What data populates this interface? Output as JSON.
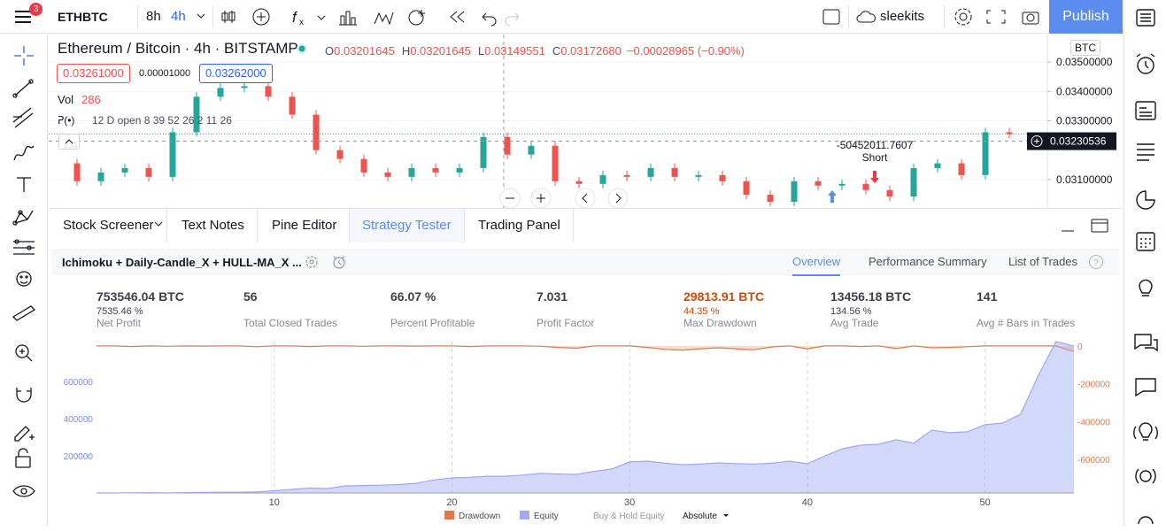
{
  "toolbar": {
    "notifications": "3",
    "symbol": "ETHBTC",
    "intervals": [
      "8h",
      "4h"
    ],
    "user": "sleekits",
    "publish": "Publish"
  },
  "chart_header": {
    "title": "Ethereum / Bitcoin · 4h · BITSTAMP",
    "ohlc": [
      {
        "key": "O",
        "value": "0.03201645"
      },
      {
        "key": "H",
        "value": "0.03201645"
      },
      {
        "key": "L",
        "value": "0.03149551"
      },
      {
        "key": "C",
        "value": "0.03172680"
      }
    ],
    "change": "−0.00028965 (−0.90%)",
    "sell": "0.03261000",
    "spread": "0.00001000",
    "buy": "0.03262000",
    "volume_label": "Vol",
    "volume": "286",
    "indicator": "12 D open 8 39 52 26 2 11 26",
    "currency": "BTC"
  },
  "price_chart": {
    "type": "candlestick",
    "close": [
      0.03155,
      0.03094,
      0.03124,
      0.03139,
      0.03109,
      0.03261,
      0.03382,
      0.03412,
      0.03418,
      0.03382,
      0.03321,
      0.032,
      0.0317,
      0.03124,
      0.03109,
      0.03139,
      0.03124,
      0.03139,
      0.03245,
      0.03185,
      0.03215,
      0.03094,
      0.03085,
      0.03115,
      0.03109,
      0.03139,
      0.03109,
      0.03115,
      0.03094,
      0.03048,
      0.03024,
      0.03094,
      0.03079,
      0.03085,
      0.03064,
      0.03042,
      0.03139,
      0.03155,
      0.03115,
      0.03261,
      0.03255
    ],
    "ylim": [
      0.03003,
      0.03594
    ],
    "yticks": [
      {
        "value": 0.035,
        "label": "0.03500000"
      },
      {
        "value": 0.034,
        "label": "0.03400000"
      },
      {
        "value": 0.033,
        "label": "0.03300000"
      },
      {
        "value": 0.031,
        "label": "0.03100000"
      }
    ],
    "last_price": {
      "value": 0.03230536,
      "label": "0.03230536"
    },
    "annotation": "-50452011.7607",
    "signal": "Short",
    "up_color": "#26a69a",
    "down_color": "#ef5350"
  },
  "tabs": [
    "Stock Screener",
    "Text Notes",
    "Pine Editor",
    "Strategy Tester",
    "Trading Panel"
  ],
  "strategy": {
    "name": "Ichimoku + Daily-Candle_X + HULL-MA_X ...",
    "views": [
      "Overview",
      "Performance Summary",
      "List of Trades"
    ],
    "stats": [
      {
        "value": "753546.04 BTC",
        "sub": "7535.46 %",
        "label": "Net Profit"
      },
      {
        "value": "56",
        "label": "Total Closed Trades"
      },
      {
        "value": "66.07 %",
        "label": "Percent Profitable"
      },
      {
        "value": "7.031",
        "label": "Profit Factor"
      },
      {
        "value": "29813.91 BTC",
        "sub": "44.35 %",
        "label": "Max Drawdown"
      },
      {
        "value": "13456.18 BTC",
        "sub": "134.56 %",
        "label": "Avg Trade"
      },
      {
        "value": "141",
        "label": "Avg # Bars in Trades"
      }
    ]
  },
  "chart_data": {
    "type": "area",
    "x": [
      0,
      1,
      2,
      3,
      4,
      5,
      6,
      7,
      8,
      9,
      10,
      11,
      12,
      13,
      14,
      15,
      16,
      17,
      18,
      19,
      20,
      21,
      22,
      23,
      24,
      25,
      26,
      27,
      28,
      29,
      30,
      31,
      32,
      33,
      34,
      35,
      36,
      37,
      38,
      39,
      40,
      41,
      42,
      43,
      44,
      45,
      46,
      47,
      48,
      49,
      50,
      51,
      52,
      53,
      54,
      55
    ],
    "series": [
      {
        "name": "Drawdown",
        "color": "#e07a4a",
        "axis": "y2",
        "values": [
          0,
          0,
          -3000,
          0,
          -2000,
          0,
          -1000,
          0,
          0,
          -4000,
          0,
          0,
          -3000,
          0,
          0,
          -2000,
          0,
          0,
          -1000,
          0,
          0,
          -3000,
          0,
          0,
          0,
          -2000,
          -8000,
          -12000,
          0,
          0,
          0,
          -8000,
          -18000,
          -22000,
          -15000,
          -10000,
          -15000,
          -20000,
          -5000,
          0,
          -15000,
          0,
          0,
          -3000,
          0,
          -14000,
          0,
          -10000,
          -8000,
          -4000,
          0,
          0,
          0,
          0,
          0,
          -30000
        ]
      },
      {
        "name": "Equity",
        "color": "#9fa8f0",
        "values": [
          0,
          0,
          1000,
          2000,
          0,
          2000,
          3000,
          4000,
          4000,
          5000,
          12000,
          19000,
          26000,
          24000,
          38000,
          40000,
          42000,
          45000,
          52000,
          70000,
          81000,
          84000,
          90000,
          90000,
          96000,
          105000,
          102000,
          100000,
          116000,
          129000,
          167000,
          171000,
          160000,
          152000,
          155000,
          162000,
          158000,
          155000,
          160000,
          171000,
          157000,
          200000,
          238000,
          257000,
          262000,
          286000,
          267000,
          338000,
          324000,
          329000,
          367000,
          376000,
          424000,
          633000,
          814000,
          790000
        ]
      }
    ],
    "buy_hold": "Buy & Hold Equity",
    "mode": "Absolute",
    "xlim": [
      0,
      55
    ],
    "xticks": [
      10,
      20,
      30,
      40,
      50
    ],
    "ylim": [
      0,
      814000
    ],
    "yticks": [
      200000,
      400000,
      600000
    ],
    "y2lim": [
      -778000,
      23000
    ],
    "y2ticks": [
      0,
      -200000,
      -400000,
      -600000
    ],
    "grid": true
  }
}
